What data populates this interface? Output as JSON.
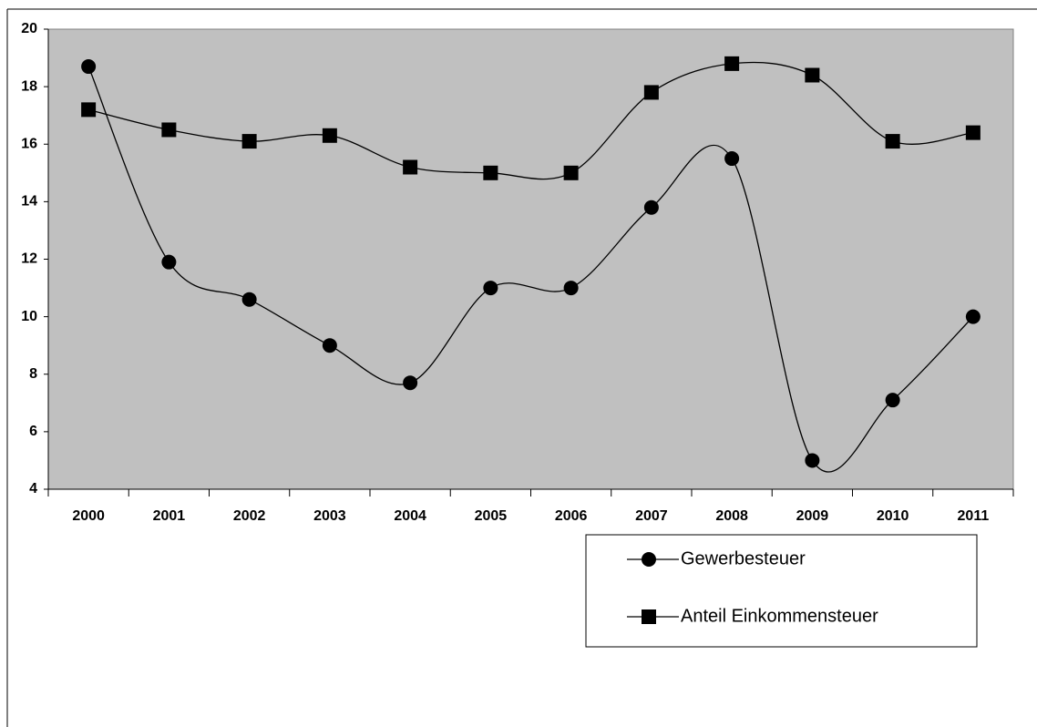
{
  "chart_data": {
    "type": "line",
    "categories": [
      "2000",
      "2001",
      "2002",
      "2003",
      "2004",
      "2005",
      "2006",
      "2007",
      "2008",
      "2009",
      "2010",
      "2011"
    ],
    "series": [
      {
        "name": "Gewerbesteuer",
        "color": "#000000",
        "marker": "circle",
        "values": [
          18.7,
          11.9,
          10.6,
          9.0,
          7.7,
          11.0,
          11.0,
          13.8,
          15.5,
          5.0,
          7.1,
          10.0
        ]
      },
      {
        "name": "Anteil Einkommensteuer",
        "color": "#000000",
        "marker": "square",
        "values": [
          17.2,
          16.5,
          16.1,
          16.3,
          15.2,
          15.0,
          15.0,
          17.8,
          18.8,
          18.4,
          16.1,
          16.4
        ]
      }
    ],
    "ylim": [
      4,
      20
    ],
    "yticks": [
      4,
      6,
      8,
      10,
      12,
      14,
      16,
      18,
      20
    ],
    "smooth": true,
    "plot_background": "#c0c0c0"
  }
}
